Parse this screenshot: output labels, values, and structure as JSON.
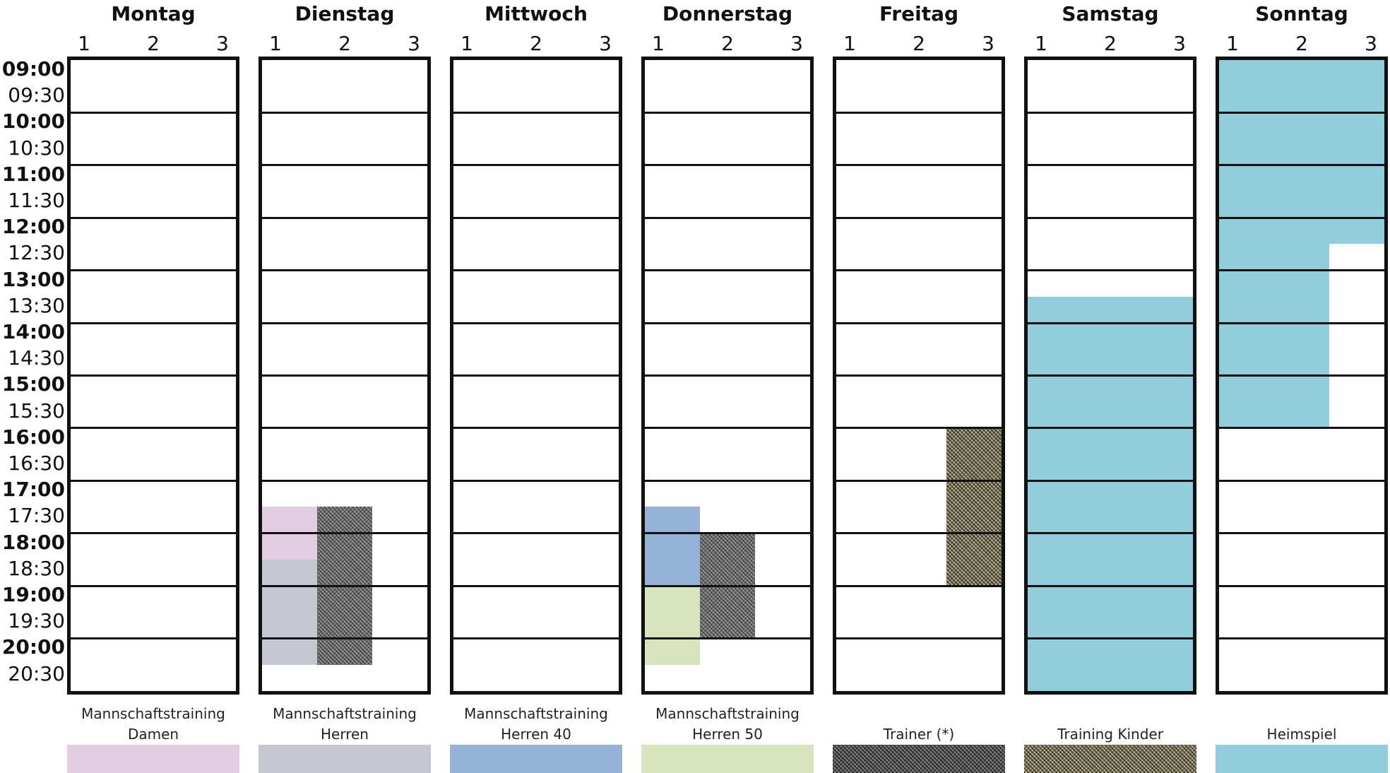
{
  "days": [
    {
      "name": "Montag"
    },
    {
      "name": "Dienstag"
    },
    {
      "name": "Mittwoch"
    },
    {
      "name": "Donnerstag"
    },
    {
      "name": "Freitag"
    },
    {
      "name": "Samstag"
    },
    {
      "name": "Sonntag"
    }
  ],
  "courts": [
    "1",
    "2",
    "3"
  ],
  "times": [
    {
      "label": "09:00",
      "hour": true
    },
    {
      "label": "09:30",
      "hour": false
    },
    {
      "label": "10:00",
      "hour": true
    },
    {
      "label": "10:30",
      "hour": false
    },
    {
      "label": "11:00",
      "hour": true
    },
    {
      "label": "11:30",
      "hour": false
    },
    {
      "label": "12:00",
      "hour": true
    },
    {
      "label": "12:30",
      "hour": false
    },
    {
      "label": "13:00",
      "hour": true
    },
    {
      "label": "13:30",
      "hour": false
    },
    {
      "label": "14:00",
      "hour": true
    },
    {
      "label": "14:30",
      "hour": false
    },
    {
      "label": "15:00",
      "hour": true
    },
    {
      "label": "15:30",
      "hour": false
    },
    {
      "label": "16:00",
      "hour": true
    },
    {
      "label": "16:30",
      "hour": false
    },
    {
      "label": "17:00",
      "hour": true
    },
    {
      "label": "17:30",
      "hour": false
    },
    {
      "label": "18:00",
      "hour": true
    },
    {
      "label": "18:30",
      "hour": false
    },
    {
      "label": "19:00",
      "hour": true
    },
    {
      "label": "19:30",
      "hour": false
    },
    {
      "label": "20:00",
      "hour": true
    },
    {
      "label": "20:30",
      "hour": false
    }
  ],
  "legend": [
    {
      "key": "damen",
      "line1": "Mannschaftstraining",
      "line2": "Damen",
      "color": "#e3cde2",
      "pattern": "solid"
    },
    {
      "key": "herren",
      "line1": "Mannschaftstraining",
      "line2": "Herren",
      "color": "#c5c8d1",
      "pattern": "solid"
    },
    {
      "key": "herren40",
      "line1": "Mannschaftstraining",
      "line2": "Herren 40",
      "color": "#95b3d7",
      "pattern": "solid"
    },
    {
      "key": "herren50",
      "line1": "Mannschaftstraining",
      "line2": "Herren 50",
      "color": "#d7e4bd",
      "pattern": "solid"
    },
    {
      "key": "trainer",
      "line1": "",
      "line2": "Trainer (*)",
      "color": "#8a8a8a",
      "pattern": "hatch"
    },
    {
      "key": "kinder",
      "line1": "",
      "line2": "Training Kinder",
      "color": "#c4bd97",
      "pattern": "hatch"
    },
    {
      "key": "heimspiel",
      "line1": "",
      "line2": "Heimspiel",
      "color": "#92cddc",
      "pattern": "solid"
    }
  ],
  "bookings": [
    {
      "day": 1,
      "courts": [
        1
      ],
      "start": "17:30",
      "end": "18:30",
      "type": "damen"
    },
    {
      "day": 1,
      "courts": [
        1
      ],
      "start": "18:30",
      "end": "20:30",
      "type": "herren"
    },
    {
      "day": 1,
      "courts": [
        2
      ],
      "start": "17:30",
      "end": "20:30",
      "type": "trainer"
    },
    {
      "day": 3,
      "courts": [
        1
      ],
      "start": "17:30",
      "end": "19:00",
      "type": "herren40"
    },
    {
      "day": 3,
      "courts": [
        1
      ],
      "start": "19:00",
      "end": "20:30",
      "type": "herren50"
    },
    {
      "day": 3,
      "courts": [
        2
      ],
      "start": "18:00",
      "end": "20:00",
      "type": "trainer"
    },
    {
      "day": 4,
      "courts": [
        3
      ],
      "start": "16:00",
      "end": "19:00",
      "type": "kinder"
    },
    {
      "day": 5,
      "courts": [
        1,
        2,
        3
      ],
      "start": "13:30",
      "end": "21:00",
      "type": "heimspiel"
    },
    {
      "day": 6,
      "courts": [
        1,
        2,
        3
      ],
      "start": "09:00",
      "end": "12:30",
      "type": "heimspiel"
    },
    {
      "day": 6,
      "courts": [
        1,
        2
      ],
      "start": "12:30",
      "end": "16:00",
      "type": "heimspiel"
    }
  ]
}
